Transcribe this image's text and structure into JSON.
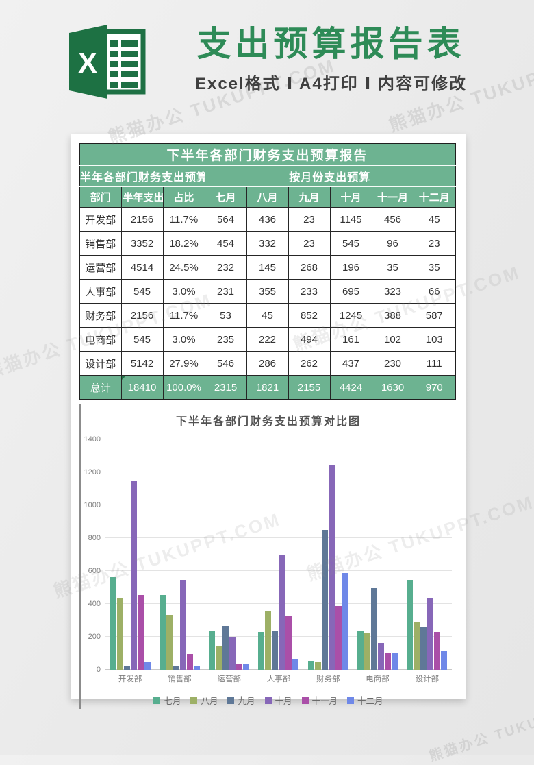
{
  "hero": {
    "title": "支出预算报告表",
    "subtitle": "Excel格式 Ⅰ A4打印 Ⅰ 内容可修改",
    "logo_letter": "X",
    "brand_green": "#1e7044",
    "title_green": "#2e8b57"
  },
  "watermark": {
    "text": "熊猫办公 TUKUPPT.COM"
  },
  "table": {
    "title": "下半年各部门财务支出预算报告",
    "group_left": "半年各部门财务支出预算报",
    "group_right": "按月份支出预算",
    "columns": [
      "部门",
      "半年支出预算",
      "占比",
      "七月",
      "八月",
      "九月",
      "十月",
      "十一月",
      "十二月"
    ],
    "rows": [
      [
        "开发部",
        "2156",
        "11.7%",
        "564",
        "436",
        "23",
        "1145",
        "456",
        "45"
      ],
      [
        "销售部",
        "3352",
        "18.2%",
        "454",
        "332",
        "23",
        "545",
        "96",
        "23"
      ],
      [
        "运营部",
        "4514",
        "24.5%",
        "232",
        "145",
        "268",
        "196",
        "35",
        "35"
      ],
      [
        "人事部",
        "545",
        "3.0%",
        "231",
        "355",
        "233",
        "695",
        "323",
        "66"
      ],
      [
        "财务部",
        "2156",
        "11.7%",
        "53",
        "45",
        "852",
        "1245",
        "388",
        "587"
      ],
      [
        "电商部",
        "545",
        "3.0%",
        "235",
        "222",
        "494",
        "161",
        "102",
        "103"
      ],
      [
        "设计部",
        "5142",
        "27.9%",
        "546",
        "286",
        "262",
        "437",
        "230",
        "111"
      ]
    ],
    "total_row": [
      "总计",
      "18410",
      "100.0%",
      "2315",
      "1821",
      "2155",
      "4424",
      "1630",
      "970"
    ],
    "header_bg": "#6db391"
  },
  "chart_data": {
    "type": "bar",
    "title": "下半年各部门财务支出预算对比图",
    "categories": [
      "开发部",
      "销售部",
      "运营部",
      "人事部",
      "财务部",
      "电商部",
      "设计部"
    ],
    "series": [
      {
        "name": "七月",
        "color": "#57ae8f",
        "values": [
          564,
          454,
          232,
          231,
          53,
          235,
          546
        ]
      },
      {
        "name": "八月",
        "color": "#9db066",
        "values": [
          436,
          332,
          145,
          355,
          45,
          222,
          286
        ]
      },
      {
        "name": "九月",
        "color": "#5f7897",
        "values": [
          23,
          23,
          268,
          233,
          852,
          494,
          262
        ]
      },
      {
        "name": "十月",
        "color": "#8767b8",
        "values": [
          1145,
          545,
          196,
          695,
          1245,
          161,
          437
        ]
      },
      {
        "name": "十一月",
        "color": "#aa4fa8",
        "values": [
          456,
          96,
          35,
          323,
          388,
          102,
          230
        ]
      },
      {
        "name": "十二月",
        "color": "#6f88e8",
        "values": [
          45,
          23,
          35,
          66,
          587,
          103,
          111
        ]
      }
    ],
    "xlabel": "",
    "ylabel": "",
    "ylim": [
      0,
      1400
    ],
    "ytick_step": 200,
    "grid": true,
    "legend_position": "bottom"
  }
}
